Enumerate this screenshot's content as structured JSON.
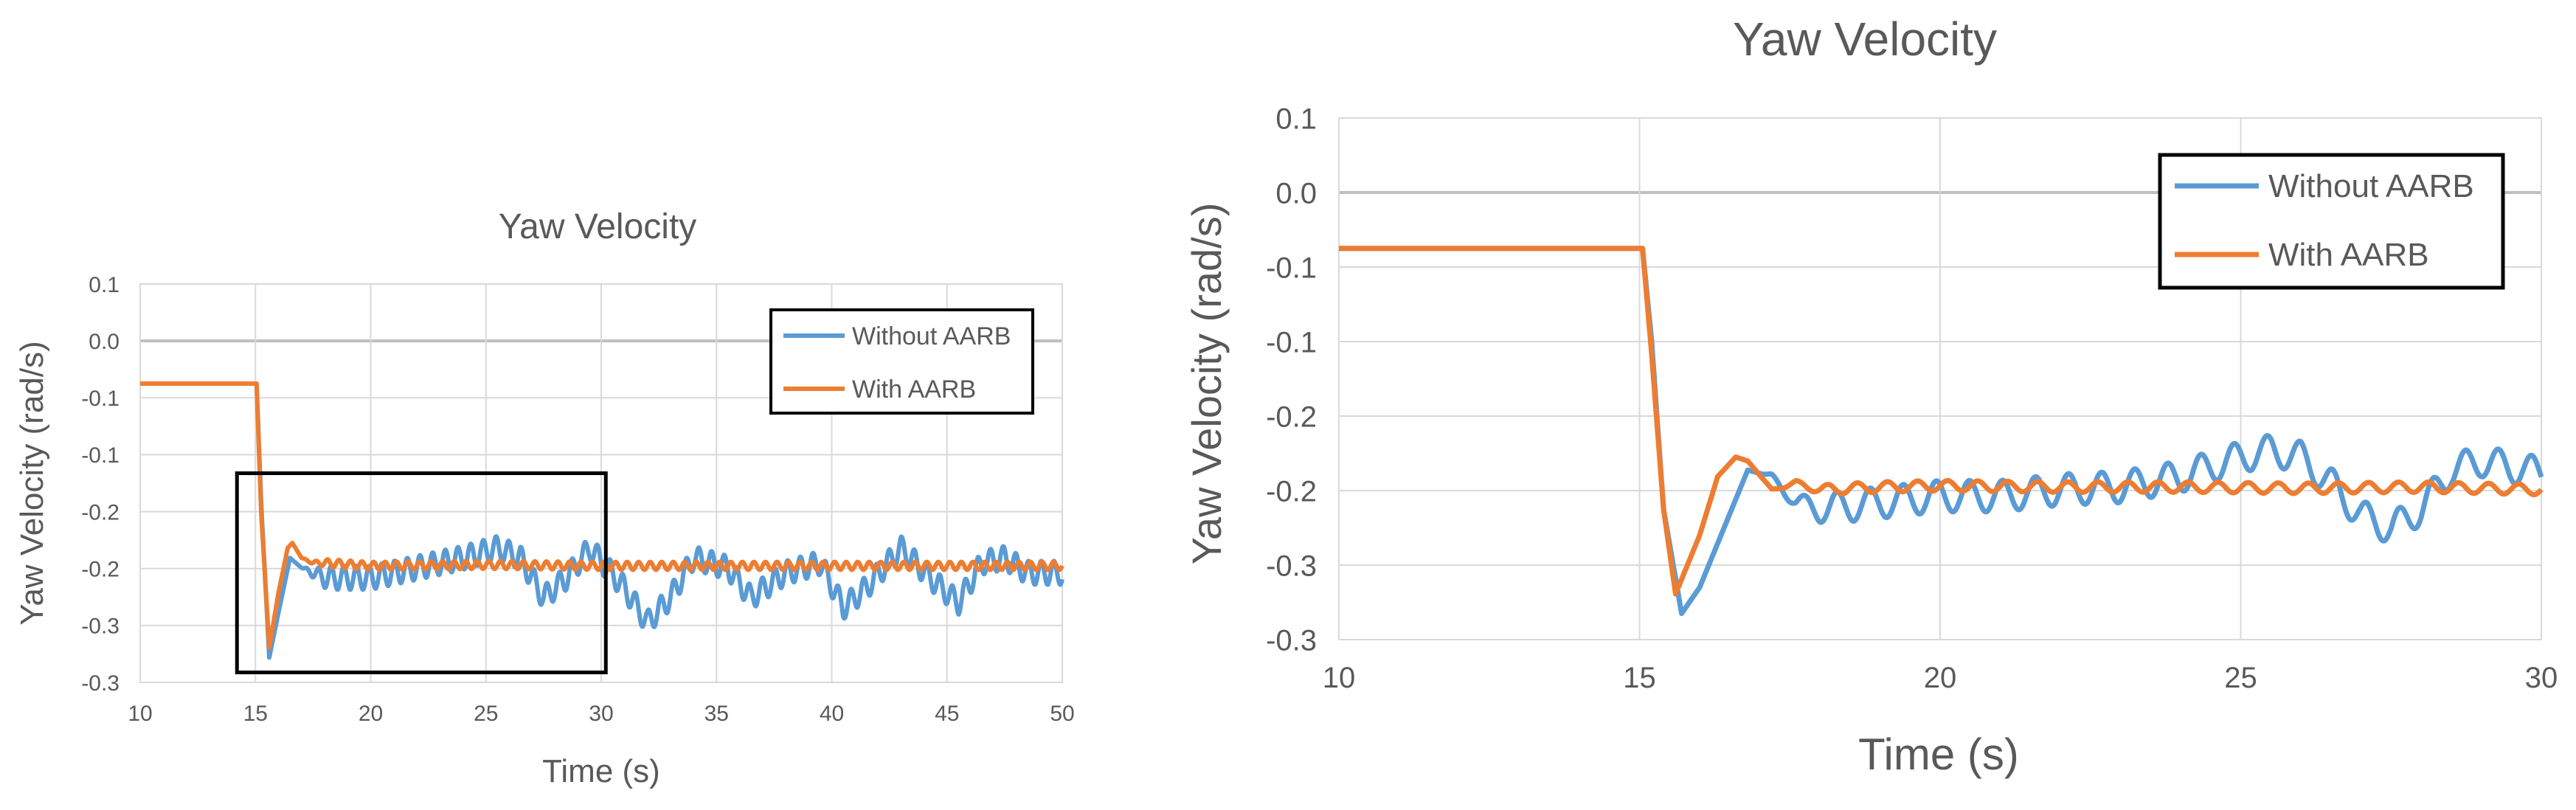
{
  "chart_data": [
    {
      "type": "line",
      "title": "Yaw Velocity",
      "xlabel": "Time (s)",
      "ylabel": "Yaw Velocity (rad/s)",
      "xlim": [
        10,
        50
      ],
      "ylim": [
        -0.3,
        0.1
      ],
      "x_ticks": [
        "10",
        "15",
        "20",
        "25",
        "30",
        "35",
        "40",
        "45",
        "50"
      ],
      "y_ticks": [
        "0.1",
        "0.0",
        "-0.1",
        "-0.1",
        "-0.2",
        "-0.2",
        "-0.3",
        "-0.3"
      ],
      "grid": true,
      "legend_position": "top-right",
      "colors": {
        "without": "#5B9BD5",
        "with": "#ED7D31"
      },
      "highlight_box": {
        "x": [
          14.2,
          30.2
        ],
        "y": [
          -0.29,
          -0.09
        ]
      },
      "series": [
        {
          "name": "Without AARB",
          "values": [
            [
              10,
              0.0
            ],
            [
              15.05,
              0.0
            ],
            [
              15.25,
              -0.12
            ],
            [
              15.6,
              -0.275
            ],
            [
              16.0,
              -0.23
            ],
            [
              16.5,
              -0.175
            ],
            [
              17.0,
              -0.185
            ],
            [
              18.0,
              -0.195
            ],
            [
              20.0,
              -0.195
            ],
            [
              22.0,
              -0.185
            ],
            [
              24.0,
              -0.175
            ],
            [
              25.5,
              -0.165
            ],
            [
              26.5,
              -0.175
            ],
            [
              27.5,
              -0.215
            ],
            [
              28.5,
              -0.195
            ],
            [
              29.5,
              -0.165
            ],
            [
              31.0,
              -0.205
            ],
            [
              32.0,
              -0.24
            ],
            [
              33.0,
              -0.215
            ],
            [
              34.0,
              -0.175
            ],
            [
              35.5,
              -0.185
            ],
            [
              36.5,
              -0.215
            ],
            [
              38.0,
              -0.19
            ],
            [
              39.5,
              -0.18
            ],
            [
              40.5,
              -0.225
            ],
            [
              41.5,
              -0.205
            ],
            [
              43.0,
              -0.165
            ],
            [
              44.5,
              -0.2
            ],
            [
              45.5,
              -0.22
            ],
            [
              46.5,
              -0.18
            ],
            [
              47.5,
              -0.175
            ],
            [
              48.5,
              -0.19
            ],
            [
              50.0,
              -0.19
            ]
          ]
        },
        {
          "name": "With AARB",
          "values": [
            [
              10,
              0.0
            ],
            [
              15.05,
              0.0
            ],
            [
              15.25,
              -0.13
            ],
            [
              15.6,
              -0.265
            ],
            [
              16.0,
              -0.21
            ],
            [
              16.4,
              -0.165
            ],
            [
              16.6,
              -0.16
            ],
            [
              17.0,
              -0.175
            ],
            [
              17.5,
              -0.18
            ],
            [
              18.0,
              -0.18
            ],
            [
              20.0,
              -0.183
            ],
            [
              25.0,
              -0.182
            ],
            [
              30.0,
              -0.183
            ],
            [
              40.0,
              -0.183
            ],
            [
              50.0,
              -0.183
            ]
          ]
        }
      ]
    },
    {
      "type": "line",
      "title": "Yaw Velocity",
      "xlabel": "Time (s)",
      "ylabel": "Yaw Velocity (rad/s)",
      "xlim": [
        10,
        30
      ],
      "ylim": [
        -0.3,
        0.1
      ],
      "x_ticks": [
        "10",
        "15",
        "20",
        "25",
        "30"
      ],
      "y_ticks": [
        "0.1",
        "0.0",
        "-0.1",
        "-0.1",
        "-0.2",
        "-0.2",
        "-0.3",
        "-0.3"
      ],
      "grid": true,
      "legend_position": "top-right",
      "colors": {
        "without": "#5B9BD5",
        "with": "#ED7D31"
      },
      "series": [
        {
          "name": "Without AARB",
          "values": [
            [
              10,
              0.0
            ],
            [
              15.05,
              0.0
            ],
            [
              15.2,
              -0.07
            ],
            [
              15.4,
              -0.2
            ],
            [
              15.7,
              -0.28
            ],
            [
              16.0,
              -0.26
            ],
            [
              16.4,
              -0.215
            ],
            [
              16.8,
              -0.17
            ],
            [
              17.2,
              -0.175
            ],
            [
              17.6,
              -0.195
            ],
            [
              18.0,
              -0.2
            ],
            [
              19.0,
              -0.195
            ],
            [
              20.0,
              -0.19
            ],
            [
              21.0,
              -0.19
            ],
            [
              22.0,
              -0.185
            ],
            [
              23.0,
              -0.183
            ],
            [
              24.0,
              -0.175
            ],
            [
              25.0,
              -0.16
            ],
            [
              25.5,
              -0.155
            ],
            [
              26.0,
              -0.16
            ],
            [
              26.5,
              -0.18
            ],
            [
              27.0,
              -0.205
            ],
            [
              27.5,
              -0.215
            ],
            [
              28.0,
              -0.2
            ],
            [
              28.5,
              -0.17
            ],
            [
              29.0,
              -0.163
            ],
            [
              29.5,
              -0.168
            ],
            [
              30.0,
              -0.172
            ]
          ]
        },
        {
          "name": "With AARB",
          "values": [
            [
              10,
              0.0
            ],
            [
              15.05,
              0.0
            ],
            [
              15.2,
              -0.08
            ],
            [
              15.4,
              -0.2
            ],
            [
              15.6,
              -0.265
            ],
            [
              16.0,
              -0.22
            ],
            [
              16.3,
              -0.175
            ],
            [
              16.6,
              -0.16
            ],
            [
              16.8,
              -0.163
            ],
            [
              17.2,
              -0.185
            ],
            [
              17.6,
              -0.18
            ],
            [
              18.0,
              -0.185
            ],
            [
              19.0,
              -0.183
            ],
            [
              20.0,
              -0.182
            ],
            [
              22.0,
              -0.183
            ],
            [
              24.0,
              -0.183
            ],
            [
              26.0,
              -0.184
            ],
            [
              28.0,
              -0.183
            ],
            [
              30.0,
              -0.185
            ]
          ]
        }
      ]
    }
  ]
}
